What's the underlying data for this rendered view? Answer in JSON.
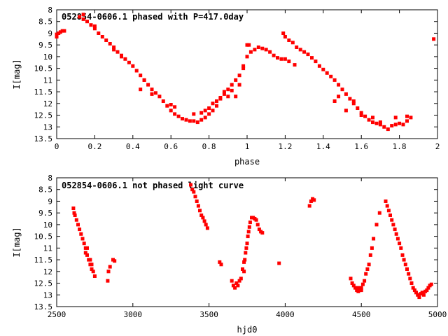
{
  "chart_data": [
    {
      "type": "scatter",
      "title": "052854-0606.1 phased with P=417.0day",
      "xlabel": "phase",
      "ylabel": "I[mag]",
      "xlim": [
        0,
        2
      ],
      "ylim": [
        13.5,
        8
      ],
      "y_inverted": true,
      "xticks": [
        "0",
        "0.2",
        "0.4",
        "0.6",
        "0.8",
        "1",
        "1.2",
        "1.4",
        "1.6",
        "1.8",
        "2"
      ],
      "yticks": [
        "8",
        "8.5",
        "9",
        "9.5",
        "10",
        "10.5",
        "11",
        "11.5",
        "12",
        "12.5",
        "13",
        "13.5"
      ],
      "marker_color": "#ff0000",
      "grid": false,
      "series": [
        {
          "points": [
            [
              0.0,
              9.05
            ],
            [
              0.01,
              9.0
            ],
            [
              0.02,
              8.95
            ],
            [
              0.03,
              8.9
            ],
            [
              0.04,
              8.9
            ],
            [
              0.12,
              8.3
            ],
            [
              0.14,
              8.4
            ],
            [
              0.16,
              8.5
            ],
            [
              0.18,
              8.65
            ],
            [
              0.2,
              8.8
            ],
            [
              0.22,
              9.0
            ],
            [
              0.24,
              9.15
            ],
            [
              0.26,
              9.3
            ],
            [
              0.28,
              9.45
            ],
            [
              0.3,
              9.6
            ],
            [
              0.32,
              9.8
            ],
            [
              0.34,
              9.95
            ],
            [
              0.36,
              10.1
            ],
            [
              0.38,
              10.25
            ],
            [
              0.4,
              10.4
            ],
            [
              0.42,
              10.6
            ],
            [
              0.44,
              10.8
            ],
            [
              0.46,
              11.0
            ],
            [
              0.48,
              11.2
            ],
            [
              0.5,
              11.4
            ],
            [
              0.52,
              11.55
            ],
            [
              0.54,
              11.7
            ],
            [
              0.56,
              11.9
            ],
            [
              0.58,
              12.1
            ],
            [
              0.6,
              12.3
            ],
            [
              0.62,
              12.45
            ],
            [
              0.64,
              12.55
            ],
            [
              0.66,
              12.65
            ],
            [
              0.68,
              12.7
            ],
            [
              0.7,
              12.75
            ],
            [
              0.72,
              12.75
            ],
            [
              0.74,
              12.8
            ],
            [
              0.76,
              12.7
            ],
            [
              0.78,
              12.6
            ],
            [
              0.8,
              12.45
            ],
            [
              0.82,
              12.3
            ],
            [
              0.84,
              12.1
            ],
            [
              0.86,
              11.8
            ],
            [
              0.88,
              11.6
            ],
            [
              0.9,
              11.4
            ],
            [
              0.92,
              11.2
            ],
            [
              0.94,
              11.0
            ],
            [
              0.96,
              10.8
            ],
            [
              0.98,
              10.4
            ],
            [
              1.0,
              10.0
            ],
            [
              1.02,
              9.8
            ],
            [
              1.04,
              9.7
            ],
            [
              1.06,
              9.6
            ],
            [
              1.08,
              9.65
            ],
            [
              1.1,
              9.7
            ],
            [
              1.12,
              9.8
            ],
            [
              1.14,
              9.95
            ],
            [
              1.16,
              10.05
            ],
            [
              1.18,
              10.1
            ],
            [
              1.19,
              9.0
            ],
            [
              1.2,
              9.15
            ],
            [
              1.22,
              9.3
            ],
            [
              1.24,
              9.4
            ],
            [
              1.25,
              10.35
            ],
            [
              1.26,
              9.6
            ],
            [
              1.28,
              9.7
            ],
            [
              1.3,
              9.8
            ],
            [
              1.32,
              9.9
            ],
            [
              1.34,
              10.05
            ],
            [
              1.36,
              10.2
            ],
            [
              1.38,
              10.4
            ],
            [
              1.4,
              10.55
            ],
            [
              1.42,
              10.7
            ],
            [
              1.44,
              10.85
            ],
            [
              1.46,
              11.0
            ],
            [
              1.48,
              11.2
            ],
            [
              1.5,
              11.4
            ],
            [
              1.52,
              11.6
            ],
            [
              1.54,
              11.8
            ],
            [
              1.56,
              12.0
            ],
            [
              1.58,
              12.2
            ],
            [
              1.6,
              12.4
            ],
            [
              1.62,
              12.55
            ],
            [
              1.64,
              12.7
            ],
            [
              1.66,
              12.8
            ],
            [
              1.68,
              12.85
            ],
            [
              1.7,
              12.9
            ],
            [
              1.72,
              13.0
            ],
            [
              1.74,
              13.1
            ],
            [
              1.76,
              12.95
            ],
            [
              1.78,
              12.9
            ],
            [
              1.8,
              12.85
            ],
            [
              1.82,
              12.9
            ],
            [
              1.84,
              12.75
            ],
            [
              1.86,
              12.6
            ],
            [
              0.6,
              12.05
            ],
            [
              0.62,
              12.15
            ],
            [
              0.8,
              12.2
            ],
            [
              0.82,
              12.0
            ],
            [
              0.84,
              11.9
            ],
            [
              0.86,
              11.75
            ],
            [
              0.88,
              11.5
            ],
            [
              0.9,
              11.7
            ],
            [
              0.92,
              11.45
            ],
            [
              0.94,
              11.7
            ],
            [
              0.96,
              11.2
            ],
            [
              0.98,
              10.5
            ],
            [
              1.0,
              9.5
            ],
            [
              1.01,
              9.5
            ],
            [
              0.72,
              12.45
            ],
            [
              0.76,
              12.4
            ],
            [
              0.78,
              12.3
            ],
            [
              1.52,
              12.3
            ],
            [
              1.56,
              11.9
            ],
            [
              1.48,
              11.7
            ],
            [
              1.46,
              11.9
            ],
            [
              1.6,
              12.5
            ],
            [
              1.66,
              12.6
            ],
            [
              1.7,
              12.8
            ],
            [
              1.78,
              12.6
            ],
            [
              1.84,
              12.55
            ],
            [
              0.46,
              11.0
            ],
            [
              0.44,
              11.4
            ],
            [
              0.5,
              11.6
            ],
            [
              0.3,
              9.7
            ],
            [
              0.34,
              10.0
            ],
            [
              0.14,
              8.2
            ],
            [
              0.2,
              8.7
            ],
            [
              1.2,
              10.1
            ],
            [
              1.22,
              10.2
            ],
            [
              1.98,
              9.25
            ],
            [
              0.0,
              9.15
            ]
          ]
        }
      ]
    },
    {
      "type": "scatter",
      "title": "052854-0606.1 not phased light curve",
      "xlabel": "hjd0",
      "ylabel": "I[mag]",
      "xlim": [
        2500,
        5000
      ],
      "ylim": [
        13.5,
        8
      ],
      "y_inverted": true,
      "xticks": [
        "2500",
        "3000",
        "3500",
        "4000",
        "4500",
        "5000"
      ],
      "yticks": [
        "8",
        "8.5",
        "9",
        "9.5",
        "10",
        "10.5",
        "11",
        "11.5",
        "12",
        "12.5",
        "13",
        "13.5"
      ],
      "marker_color": "#ff0000",
      "grid": false,
      "series": [
        {
          "points": [
            [
              2610,
              9.3
            ],
            [
              2615,
              9.5
            ],
            [
              2620,
              9.6
            ],
            [
              2630,
              9.8
            ],
            [
              2640,
              10.0
            ],
            [
              2650,
              10.2
            ],
            [
              2660,
              10.4
            ],
            [
              2670,
              10.6
            ],
            [
              2680,
              10.8
            ],
            [
              2690,
              11.0
            ],
            [
              2700,
              11.3
            ],
            [
              2710,
              11.5
            ],
            [
              2720,
              11.7
            ],
            [
              2730,
              11.9
            ],
            [
              2740,
              12.0
            ],
            [
              2750,
              12.2
            ],
            [
              2690,
              11.2
            ],
            [
              2700,
              11.0
            ],
            [
              2720,
              11.5
            ],
            [
              2730,
              11.7
            ],
            [
              2835,
              12.4
            ],
            [
              2840,
              12.0
            ],
            [
              2850,
              11.8
            ],
            [
              2870,
              11.5
            ],
            [
              2880,
              11.55
            ],
            [
              3380,
              8.3
            ],
            [
              3390,
              8.5
            ],
            [
              3400,
              8.6
            ],
            [
              3410,
              8.8
            ],
            [
              3420,
              9.0
            ],
            [
              3430,
              9.2
            ],
            [
              3440,
              9.4
            ],
            [
              3450,
              9.6
            ],
            [
              3460,
              9.7
            ],
            [
              3470,
              9.85
            ],
            [
              3480,
              10.0
            ],
            [
              3490,
              10.15
            ],
            [
              3570,
              11.6
            ],
            [
              3580,
              11.7
            ],
            [
              3650,
              12.4
            ],
            [
              3660,
              12.6
            ],
            [
              3670,
              12.7
            ],
            [
              3680,
              12.5
            ],
            [
              3690,
              12.6
            ],
            [
              3700,
              12.4
            ],
            [
              3710,
              12.3
            ],
            [
              3720,
              11.9
            ],
            [
              3730,
              11.6
            ],
            [
              3740,
              11.2
            ],
            [
              3750,
              10.8
            ],
            [
              3760,
              10.3
            ],
            [
              3770,
              9.9
            ],
            [
              3780,
              9.7
            ],
            [
              3790,
              9.7
            ],
            [
              3800,
              9.75
            ],
            [
              3810,
              9.8
            ],
            [
              3820,
              10.0
            ],
            [
              3830,
              10.2
            ],
            [
              3840,
              10.3
            ],
            [
              3850,
              10.35
            ],
            [
              3730,
              12.0
            ],
            [
              3735,
              11.5
            ],
            [
              3745,
              11.0
            ],
            [
              3755,
              10.5
            ],
            [
              3765,
              10.1
            ],
            [
              3960,
              11.65
            ],
            [
              4160,
              9.2
            ],
            [
              4170,
              9.0
            ],
            [
              4180,
              8.9
            ],
            [
              4190,
              8.95
            ],
            [
              4430,
              12.3
            ],
            [
              4440,
              12.5
            ],
            [
              4450,
              12.6
            ],
            [
              4460,
              12.7
            ],
            [
              4470,
              12.8
            ],
            [
              4480,
              12.85
            ],
            [
              4490,
              12.8
            ],
            [
              4500,
              12.7
            ],
            [
              4510,
              12.55
            ],
            [
              4520,
              12.4
            ],
            [
              4530,
              12.1
            ],
            [
              4540,
              11.9
            ],
            [
              4550,
              11.7
            ],
            [
              4560,
              11.3
            ],
            [
              4570,
              11.0
            ],
            [
              4580,
              10.6
            ],
            [
              4600,
              10.0
            ],
            [
              4620,
              9.5
            ],
            [
              4480,
              12.7
            ],
            [
              4500,
              12.8
            ],
            [
              4660,
              9.0
            ],
            [
              4670,
              9.2
            ],
            [
              4680,
              9.4
            ],
            [
              4690,
              9.6
            ],
            [
              4700,
              9.8
            ],
            [
              4710,
              10.0
            ],
            [
              4720,
              10.2
            ],
            [
              4730,
              10.4
            ],
            [
              4740,
              10.6
            ],
            [
              4750,
              10.8
            ],
            [
              4760,
              11.0
            ],
            [
              4770,
              11.3
            ],
            [
              4780,
              11.5
            ],
            [
              4790,
              11.7
            ],
            [
              4800,
              11.9
            ],
            [
              4810,
              12.1
            ],
            [
              4820,
              12.3
            ],
            [
              4830,
              12.5
            ],
            [
              4840,
              12.7
            ],
            [
              4850,
              12.8
            ],
            [
              4860,
              12.9
            ],
            [
              4870,
              13.0
            ],
            [
              4880,
              13.1
            ],
            [
              4890,
              12.95
            ],
            [
              4900,
              12.9
            ],
            [
              4910,
              13.0
            ],
            [
              4920,
              12.85
            ],
            [
              4930,
              12.8
            ],
            [
              4940,
              12.7
            ],
            [
              4950,
              12.6
            ],
            [
              4960,
              12.55
            ]
          ]
        }
      ]
    }
  ]
}
